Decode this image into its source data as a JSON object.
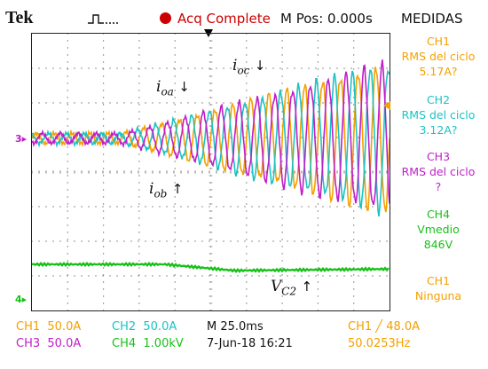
{
  "header": {
    "brand": "Tek",
    "acq_status": "Acq Complete",
    "position": "M Pos: 0.000s",
    "menu_title": "MEDIDAS"
  },
  "colors": {
    "ch1": "#f5a000",
    "ch2": "#1cc3c3",
    "ch3": "#c01ec8",
    "ch4": "#18c018",
    "acq": "#cc0000"
  },
  "markers": {
    "ch3": "3",
    "ch4": "4"
  },
  "annotations": {
    "ioa": {
      "base": "i",
      "sub": "oa",
      "arrow": "↓"
    },
    "ioc": {
      "base": "i",
      "sub": "oc",
      "arrow": "↓"
    },
    "iob": {
      "base": "i",
      "sub": "ob",
      "arrow": "↑"
    },
    "vc2": {
      "base": "V",
      "sub": "C2",
      "arrow": "↑"
    }
  },
  "side_menu": [
    {
      "title": "CH1",
      "line1": "RMS del ciclo",
      "line2": "5.17A?",
      "color": "ch1"
    },
    {
      "title": "CH2",
      "line1": "RMS del ciclo",
      "line2": "3.12A?",
      "color": "ch2"
    },
    {
      "title": "CH3",
      "line1": "RMS del ciclo",
      "line2": "?",
      "color": "ch3"
    },
    {
      "title": "CH4",
      "line1": "Vmedio",
      "line2": "846V",
      "color": "ch4"
    },
    {
      "title": "CH1",
      "line1": "Ninguna",
      "line2": "",
      "color": "ch1"
    }
  ],
  "readouts": {
    "ch1_label": "CH1",
    "ch1_scale": "50.0A",
    "ch2_label": "CH2",
    "ch2_scale": "50.0A",
    "ch3_label": "CH3",
    "ch3_scale": "50.0A",
    "ch4_label": "CH4",
    "ch4_scale": "1.00kV",
    "timebase": "M 25.0ms",
    "date": "7-Jun-18 16:21",
    "trigger": "CH1 ╱ 48.0A",
    "frequency": "50.0253Hz"
  },
  "chart_data": {
    "type": "line",
    "series": [
      {
        "name": "CH1",
        "color": "#f5a000",
        "kind": "current",
        "phase": 0.0
      },
      {
        "name": "CH2",
        "color": "#1cc3c3",
        "kind": "current",
        "phase": 2.094
      },
      {
        "name": "CH3",
        "color": "#c01ec8",
        "kind": "current",
        "phase": 4.189
      },
      {
        "name": "CH4",
        "color": "#18c018",
        "kind": "voltage"
      }
    ],
    "cycles": 20,
    "timebase": "25.0ms/div"
  }
}
